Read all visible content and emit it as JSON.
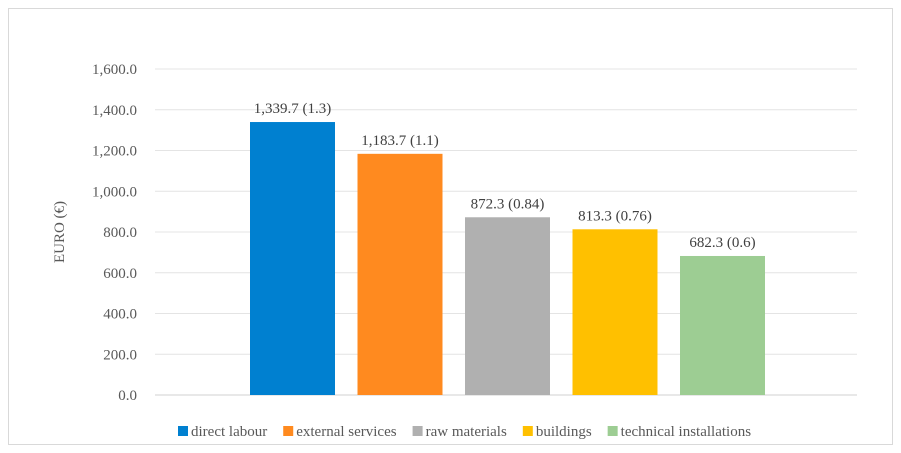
{
  "chart_data": {
    "type": "bar",
    "ylabel": "EURO (€)",
    "ylim": [
      0,
      1600
    ],
    "yticks": [
      "0.0",
      "200.0",
      "400.0",
      "600.0",
      "800.0",
      "1,000.0",
      "1,200.0",
      "1,400.0",
      "1,600.0"
    ],
    "grid": true,
    "legend_position": "bottom",
    "series": [
      {
        "name": "direct labour",
        "value": 1339.7,
        "label": "1,339.7 (1.3)",
        "color": "#0080d0"
      },
      {
        "name": "external services",
        "value": 1183.7,
        "label": "1,183.7 (1.1)",
        "color": "#ff8a1f"
      },
      {
        "name": "raw materials",
        "value": 872.3,
        "label": "872.3 (0.84)",
        "color": "#b0b0b0"
      },
      {
        "name": "buildings",
        "value": 813.3,
        "label": "813.3 (0.76)",
        "color": "#ffc000"
      },
      {
        "name": "technical installations",
        "value": 682.3,
        "label": "682.3 (0.6)",
        "color": "#9dcd93"
      }
    ]
  }
}
